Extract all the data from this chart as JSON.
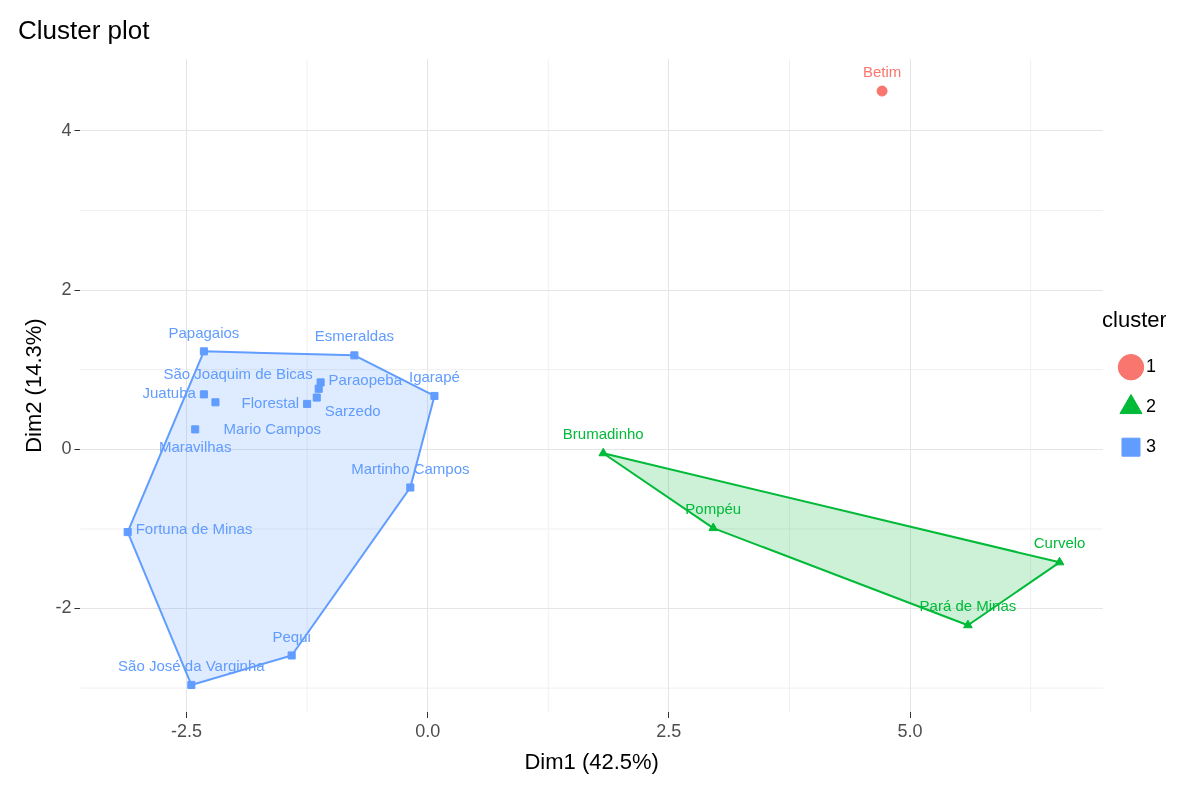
{
  "chart_data": {
    "type": "scatter",
    "title": "Cluster plot",
    "xlabel": "Dim1 (42.5%)",
    "ylabel": "Dim2 (14.3%)",
    "legend_title": "cluster",
    "legend": "right",
    "grid": true,
    "xlim": [
      -3.6,
      7.0
    ],
    "ylim": [
      -3.3,
      4.9
    ],
    "xticks": [
      {
        "value": -2.5,
        "label": "-2.5"
      },
      {
        "value": 0,
        "label": "0.0"
      },
      {
        "value": 2.5,
        "label": "2.5"
      },
      {
        "value": 5,
        "label": "5.0"
      }
    ],
    "yticks": [
      -2,
      0,
      2,
      4
    ],
    "series": [
      {
        "name": "1",
        "color": "#f8766d",
        "marker": "circle",
        "x": [
          4.71
        ],
        "values": [
          4.5
        ],
        "value_labels": [
          "Betim"
        ]
      },
      {
        "name": "2",
        "color": "#00ba38",
        "marker": "triangle",
        "x": [
          1.82,
          2.96,
          6.55,
          5.6
        ],
        "values": [
          -0.05,
          -0.99,
          -1.42,
          -2.21
        ],
        "value_labels": [
          "Brumadinho",
          "Pompéu",
          "Curvelo",
          "Pará de Minas"
        ]
      },
      {
        "name": "3",
        "color": "#619cff",
        "marker": "square",
        "x": [
          -2.32,
          -0.76,
          0.07,
          -1.11,
          -1.13,
          -1.15,
          -1.25,
          -2.32,
          -2.2,
          -2.41,
          -3.11,
          -2.45,
          -1.41,
          -0.18
        ],
        "values": [
          1.23,
          1.18,
          0.67,
          0.84,
          0.76,
          0.65,
          0.57,
          0.69,
          0.59,
          0.25,
          -1.04,
          -2.96,
          -2.59,
          -0.48
        ],
        "value_labels": [
          "Papagaios",
          "Esmeraldas",
          "Igarapé",
          "Paraopeba",
          "São Joaquim de Bicas",
          "Sarzedo",
          "Florestal",
          "Juatuba",
          "Mario Campos",
          "Maravilhas",
          "Fortuna de Minas",
          "São José da Varginha",
          "Pequi",
          "Martinho Campos"
        ]
      }
    ]
  }
}
